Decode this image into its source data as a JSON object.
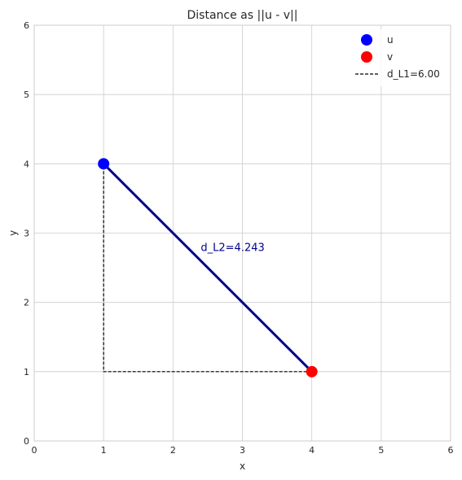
{
  "chart_data": {
    "type": "scatter",
    "title": "Distance as ||u - v||",
    "xlabel": "x",
    "ylabel": "y",
    "xlim": [
      0,
      6
    ],
    "ylim": [
      0,
      6
    ],
    "xticks": [
      0,
      1,
      2,
      3,
      4,
      5,
      6
    ],
    "yticks": [
      0,
      1,
      2,
      3,
      4,
      5,
      6
    ],
    "grid": true,
    "legend_placement": "top-right",
    "points": [
      {
        "name": "u",
        "x": 1,
        "y": 4,
        "color": "#0000ff"
      },
      {
        "name": "v",
        "x": 4,
        "y": 1,
        "color": "#ff0000"
      }
    ],
    "l1_path": {
      "name": "d_L1=6.00",
      "color": "#000000",
      "style": "dashed",
      "x": [
        4,
        1,
        1
      ],
      "y": [
        1,
        1,
        4
      ]
    },
    "l2_arrow": {
      "from": [
        4,
        1
      ],
      "to": [
        1,
        4
      ],
      "color": "#00008b"
    },
    "annotations": [
      {
        "text": "d_L2=4.243",
        "x": 2.4,
        "y": 2.8,
        "color": "#00008b"
      }
    ]
  }
}
